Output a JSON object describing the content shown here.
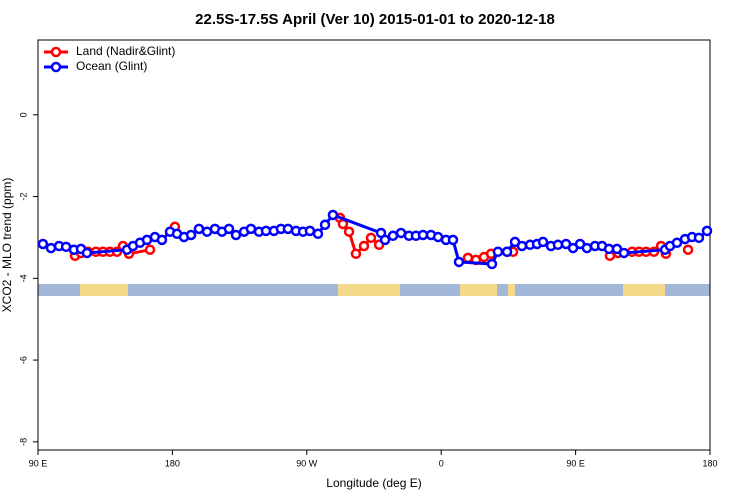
{
  "chart_data": {
    "type": "line",
    "title": "22.5S-17.5S April (Ver 10)   2015-01-01 to 2020-12-18",
    "x_label": "Longitude (deg E)",
    "y_label": "XCO2 - MLO trend (ppm)",
    "xlim": [
      90,
      540
    ],
    "ylim": [
      -8.2,
      1.83
    ],
    "xticks": [
      {
        "value": 90,
        "label": "90 E"
      },
      180,
      {
        "value": 270,
        "label": "90 W"
      },
      {
        "value": 360,
        "label": "0"
      },
      {
        "value": 450,
        "label": "90 E"
      },
      {
        "value": 540,
        "label": "180"
      }
    ],
    "yticks": [
      0,
      -2,
      -4,
      -6,
      -8
    ],
    "legend": "top-left",
    "series": [
      {
        "name": "Land (Nadir&Glint)",
        "color": "#ff0000",
        "x": [
          114.8,
          118.8,
          123.5,
          128.8,
          133.5,
          138.2,
          142.9,
          146.9,
          150.9,
          165.0,
          null,
          181.7,
          null,
          292.2,
          294.2,
          298.3,
          302.9,
          308.3,
          313.0,
          318.4,
          null,
          377.9,
          383.3,
          388.7,
          393.4,
          404.1,
          408.1,
          null,
          473.0,
          478.4,
          487.8,
          492.5,
          497.2,
          502.5,
          507.2,
          510.5,
          null,
          525.3
        ],
        "values": [
          -3.45,
          -3.38,
          -3.35,
          -3.35,
          -3.35,
          -3.35,
          -3.35,
          -3.21,
          -3.4,
          -3.3,
          null,
          -2.74,
          null,
          -2.52,
          -2.67,
          -2.86,
          -3.4,
          -3.21,
          -3.01,
          -3.18,
          null,
          -3.5,
          -3.55,
          -3.48,
          -3.4,
          -3.35,
          -3.35,
          null,
          -3.45,
          -3.38,
          -3.35,
          -3.35,
          -3.35,
          -3.35,
          -3.21,
          -3.4,
          null,
          -3.3
        ]
      },
      {
        "name": "Ocean (Glint)",
        "color": "#0000ff",
        "x": [
          93.3,
          98.7,
          104.1,
          108.8,
          114.1,
          118.8,
          122.8,
          149.6,
          153.6,
          158.3,
          163.0,
          168.3,
          173.0,
          178.4,
          183.1,
          187.8,
          192.5,
          197.8,
          203.2,
          208.5,
          213.2,
          217.9,
          222.6,
          228.0,
          232.6,
          238.0,
          242.7,
          248.0,
          252.7,
          257.4,
          262.8,
          267.5,
          272.1,
          277.5,
          282.2,
          287.5,
          319.7,
          322.4,
          327.7,
          333.1,
          338.4,
          343.1,
          347.8,
          353.2,
          357.9,
          363.2,
          367.9,
          371.9,
          394.0,
          398.0,
          404.1,
          409.4,
          414.1,
          419.5,
          424.2,
          428.2,
          433.5,
          438.2,
          443.6,
          448.3,
          453.0,
          457.6,
          463.0,
          467.7,
          472.4,
          477.7,
          482.4,
          509.9,
          513.2,
          517.9,
          523.3,
          528.0,
          532.6,
          538.0
        ],
        "values": [
          -3.16,
          -3.26,
          -3.21,
          -3.23,
          -3.3,
          -3.28,
          -3.38,
          -3.3,
          -3.21,
          -3.13,
          -3.06,
          -2.99,
          -3.06,
          -2.86,
          -2.91,
          -2.99,
          -2.94,
          -2.79,
          -2.86,
          -2.79,
          -2.86,
          -2.79,
          -2.94,
          -2.86,
          -2.79,
          -2.86,
          -2.84,
          -2.84,
          -2.79,
          -2.79,
          -2.84,
          -2.86,
          -2.84,
          -2.91,
          -2.69,
          -2.45,
          -2.89,
          -3.06,
          -2.96,
          -2.89,
          -2.96,
          -2.96,
          -2.94,
          -2.94,
          -2.99,
          -3.06,
          -3.06,
          -3.6,
          -3.65,
          -3.35,
          -3.35,
          -3.11,
          -3.21,
          -3.18,
          -3.16,
          -3.11,
          -3.21,
          -3.18,
          -3.16,
          -3.26,
          -3.16,
          -3.26,
          -3.21,
          -3.21,
          -3.28,
          -3.28,
          -3.38,
          -3.3,
          -3.21,
          -3.13,
          -3.04,
          -2.99,
          -3.01,
          -2.84
        ]
      }
    ]
  }
}
